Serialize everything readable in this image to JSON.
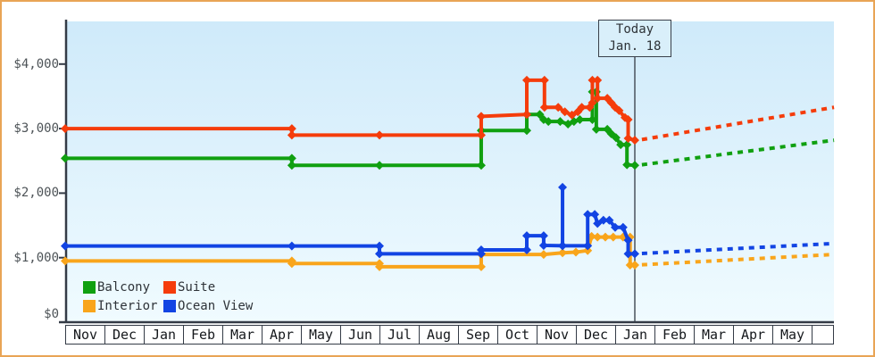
{
  "window": {
    "frame_border_color": "#e9a455",
    "background_color": "#ffffff"
  },
  "chart_data": {
    "type": "line",
    "title": "",
    "xlabel": "",
    "ylabel": "",
    "ylim": [
      0,
      4600
    ],
    "grid": false,
    "plot_background": {
      "top": "#cfeafa",
      "bottom": "#f0fbff"
    },
    "axis_color": "#343b46",
    "y_ticks": [
      {
        "label": "$4,000",
        "value": 4000
      },
      {
        "label": "$3,000",
        "value": 3000
      },
      {
        "label": "$2,000",
        "value": 2000
      },
      {
        "label": "$1,000",
        "value": 1000
      },
      {
        "label": "$0",
        "value": 0
      }
    ],
    "x_categories": [
      "Nov",
      "Dec",
      "Jan",
      "Feb",
      "Mar",
      "Apr",
      "May",
      "Jun",
      "Jul",
      "Aug",
      "Sep",
      "Oct",
      "Nov",
      "Dec",
      "Jan",
      "Feb",
      "Mar",
      "Apr",
      "May"
    ],
    "x_unit": "month index, 0 = first Nov",
    "today": {
      "label_line1": "Today",
      "label_line2": "Jan. 18",
      "x_month_index": 14.5,
      "line_color": "#4a525c"
    },
    "projection_style": "dotted",
    "series": [
      {
        "name": "Interior",
        "color": "#f9a51b",
        "points": [
          [
            0,
            950
          ],
          [
            5.77,
            950
          ],
          [
            5.77,
            910
          ],
          [
            8,
            910
          ],
          [
            8,
            860
          ],
          [
            10.59,
            860
          ],
          [
            10.59,
            1050
          ],
          [
            12.18,
            1050
          ],
          [
            12.66,
            1075
          ],
          [
            13,
            1085
          ],
          [
            13.3,
            1110
          ],
          [
            13.4,
            1330
          ],
          [
            13.55,
            1320
          ],
          [
            13.75,
            1320
          ],
          [
            13.95,
            1320
          ],
          [
            14.2,
            1320
          ],
          [
            14.38,
            1320
          ],
          [
            14.38,
            885
          ],
          [
            14.5,
            885
          ]
        ],
        "projection": [
          [
            14.68,
            890
          ],
          [
            19.57,
            1050
          ]
        ]
      },
      {
        "name": "Ocean View",
        "color": "#1244e3",
        "points": [
          [
            0,
            1180
          ],
          [
            5.77,
            1180
          ],
          [
            8,
            1180
          ],
          [
            8,
            1060
          ],
          [
            10.59,
            1060
          ],
          [
            10.59,
            1120
          ],
          [
            11.75,
            1120
          ],
          [
            11.75,
            1340
          ],
          [
            12.18,
            1340
          ],
          [
            12.18,
            1190
          ],
          [
            12.66,
            1185
          ],
          [
            12.66,
            2090
          ],
          [
            12.66,
            1185
          ],
          [
            13.3,
            1185
          ],
          [
            13.3,
            1670
          ],
          [
            13.48,
            1670
          ],
          [
            13.55,
            1530
          ],
          [
            13.7,
            1580
          ],
          [
            13.85,
            1580
          ],
          [
            14,
            1470
          ],
          [
            14.2,
            1470
          ],
          [
            14.33,
            1270
          ],
          [
            14.33,
            1060
          ],
          [
            14.5,
            1060
          ]
        ],
        "projection": [
          [
            14.68,
            1065
          ],
          [
            19.57,
            1220
          ]
        ]
      },
      {
        "name": "Balcony",
        "color": "#10a010",
        "points": [
          [
            0,
            2540
          ],
          [
            5.77,
            2540
          ],
          [
            5.77,
            2430
          ],
          [
            8,
            2430
          ],
          [
            10.59,
            2430
          ],
          [
            10.59,
            2970
          ],
          [
            11.75,
            2970
          ],
          [
            11.75,
            3220
          ],
          [
            12.08,
            3220
          ],
          [
            12.18,
            3140
          ],
          [
            12.3,
            3110
          ],
          [
            12.6,
            3110
          ],
          [
            12.8,
            3070
          ],
          [
            12.95,
            3110
          ],
          [
            13.1,
            3140
          ],
          [
            13.42,
            3140
          ],
          [
            13.42,
            3570
          ],
          [
            13.52,
            3570
          ],
          [
            13.52,
            2990
          ],
          [
            13.8,
            2990
          ],
          [
            13.9,
            2920
          ],
          [
            14.02,
            2860
          ],
          [
            14.14,
            2750
          ],
          [
            14.3,
            2750
          ],
          [
            14.3,
            2440
          ],
          [
            14.5,
            2430
          ]
        ],
        "projection": [
          [
            14.68,
            2440
          ],
          [
            19.57,
            2820
          ]
        ]
      },
      {
        "name": "Suite",
        "color": "#f53c0b",
        "points": [
          [
            0,
            3000
          ],
          [
            5.77,
            3000
          ],
          [
            5.77,
            2900
          ],
          [
            8,
            2900
          ],
          [
            10.59,
            2900
          ],
          [
            10.59,
            3190
          ],
          [
            11.75,
            3220
          ],
          [
            11.75,
            3750
          ],
          [
            12.2,
            3750
          ],
          [
            12.2,
            3330
          ],
          [
            12.55,
            3330
          ],
          [
            12.72,
            3260
          ],
          [
            12.9,
            3210
          ],
          [
            13.05,
            3260
          ],
          [
            13.15,
            3330
          ],
          [
            13.35,
            3330
          ],
          [
            13.42,
            3400
          ],
          [
            13.42,
            3750
          ],
          [
            13.55,
            3750
          ],
          [
            13.55,
            3470
          ],
          [
            13.8,
            3470
          ],
          [
            13.9,
            3400
          ],
          [
            14,
            3330
          ],
          [
            14.1,
            3280
          ],
          [
            14.25,
            3170
          ],
          [
            14.33,
            3140
          ],
          [
            14.33,
            2850
          ],
          [
            14.5,
            2820
          ]
        ],
        "projection": [
          [
            14.68,
            2830
          ],
          [
            19.57,
            3330
          ]
        ]
      }
    ],
    "legend": [
      {
        "label": "Balcony",
        "color": "#10a010"
      },
      {
        "label": "Suite",
        "color": "#f53c0b"
      },
      {
        "label": "Interior",
        "color": "#f9a51b"
      },
      {
        "label": "Ocean View",
        "color": "#1244e3"
      }
    ],
    "legend_position": "bottom-left inside plot"
  }
}
